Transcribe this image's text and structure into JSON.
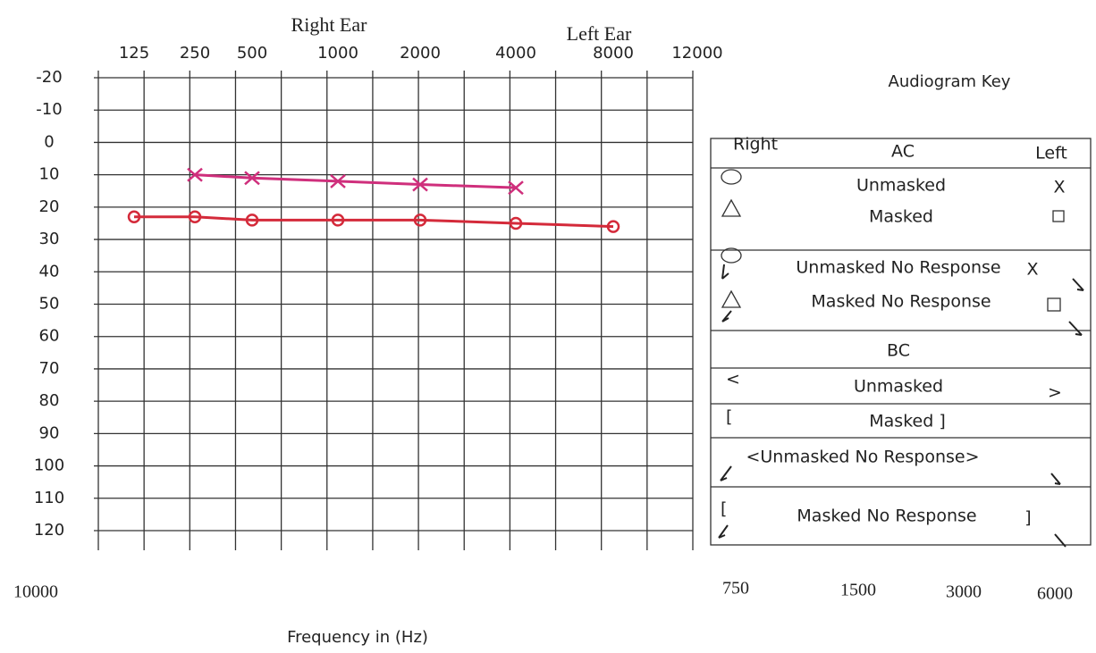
{
  "chart_data": {
    "type": "line",
    "x_label": "Frequency in (Hz)",
    "categories": [
      125,
      250,
      500,
      1000,
      2000,
      4000,
      8000,
      12000
    ],
    "series": [
      {
        "name": "Right Ear",
        "color": "#d42a3a",
        "marker": "circle",
        "values": [
          23,
          23,
          24,
          24,
          24,
          25,
          26,
          null
        ]
      },
      {
        "name": "Left Ear",
        "color": "#cf2f7c",
        "marker": "x",
        "values": [
          null,
          10,
          11,
          12,
          13,
          14,
          null,
          null
        ]
      }
    ],
    "ylim": [
      -20,
      120
    ],
    "y_inverted": true,
    "yticks": [
      -20,
      -10,
      0,
      10,
      20,
      30,
      40,
      50,
      60,
      70,
      80,
      90,
      100,
      110,
      120
    ],
    "grid": true,
    "lower_left_labels": [
      10000
    ],
    "lower_right_labels": [
      750,
      1500,
      3000,
      6000
    ]
  },
  "key": {
    "title": "Audiogram Key",
    "cells": [
      "Right",
      "AC",
      "Left",
      "Unmasked",
      "X",
      "Masked",
      "Unmasked No Response",
      "X",
      "Masked No Response",
      "BC",
      "<",
      "Unmasked",
      ">",
      "[",
      "Masked ]",
      "<Unmasked No Response>",
      "[",
      "Masked No Response",
      "]"
    ]
  }
}
